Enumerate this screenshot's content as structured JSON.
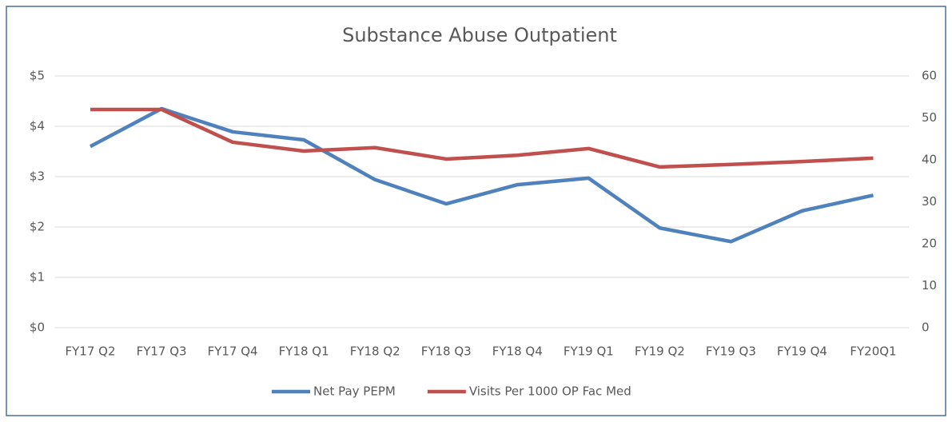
{
  "chart_data": {
    "type": "line",
    "title": "Substance Abuse Outpatient",
    "categories": [
      "FY17 Q2",
      "FY17 Q3",
      "FY17 Q4",
      "FY18 Q1",
      "FY18 Q2",
      "FY18 Q3",
      "FY18 Q4",
      "FY19 Q1",
      "FY19 Q2",
      "FY19 Q3",
      "FY19 Q4",
      "FY20Q1"
    ],
    "series": [
      {
        "name": "Net Pay PEPM",
        "color": "#4f81bd",
        "values": [
          3.6,
          4.35,
          3.89,
          3.73,
          2.94,
          2.46,
          2.84,
          2.97,
          1.98,
          1.71,
          2.32,
          2.63
        ]
      },
      {
        "name": "Visits Per 1000 OP Fac Med",
        "color": "#c0504d",
        "axis": "y2",
        "values": [
          52,
          52,
          44.2,
          42.1,
          42.9,
          40.2,
          41.1,
          42.7,
          38.3,
          38.9,
          39.6,
          40.4
        ]
      }
    ],
    "ylim": [
      0,
      5
    ],
    "yticks": [
      {
        "value": 0,
        "label": "$0"
      },
      {
        "value": 1,
        "label": "$1"
      },
      {
        "value": 2,
        "label": "$2"
      },
      {
        "value": 3,
        "label": "$3"
      },
      {
        "value": 4,
        "label": "$4"
      },
      {
        "value": 5,
        "label": "$5"
      }
    ],
    "y2lim": [
      0,
      60
    ],
    "y2ticks": [
      0,
      10,
      20,
      30,
      40,
      50,
      60
    ],
    "grid": true,
    "legend": "bottom"
  }
}
